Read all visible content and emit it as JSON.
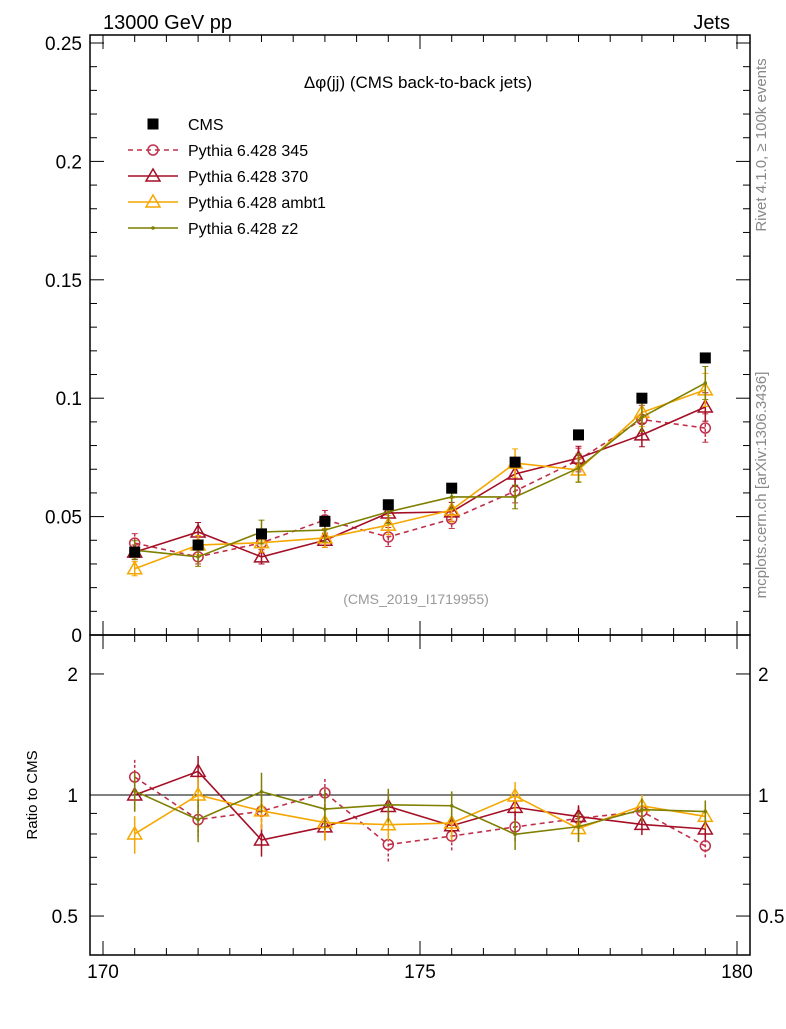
{
  "header": {
    "left": "13000 GeV pp",
    "right": "Jets"
  },
  "side": {
    "rivet": "Rivet 4.1.0, ≥ 100k events",
    "mcplots": "mcplots.cern.ch [arXiv:1306.3436]"
  },
  "watermark": "(CMS_2019_I1719955)",
  "chart_data": {
    "type": "line",
    "title": "Δφ(jj) (CMS back-to-back jets)",
    "xlabel": "",
    "ylabel": "",
    "ratio_ylabel": "Ratio to CMS",
    "xlim": [
      170,
      180
    ],
    "ylim": [
      0,
      0.25
    ],
    "ratio_ylim": [
      0.4,
      2.5
    ],
    "ratio_scale": "log",
    "x_ticks": [
      "170",
      "175",
      "180"
    ],
    "y_ticks": [
      "0",
      "0.05",
      "0.1",
      "0.15",
      "0.2",
      "0.25"
    ],
    "ratio_ticks": [
      "0.5",
      "1",
      "2"
    ],
    "legend_position": "top-left",
    "x": [
      170.5,
      171.5,
      172.5,
      173.5,
      174.5,
      175.5,
      176.5,
      177.5,
      178.5,
      179.5
    ],
    "series": [
      {
        "name": "CMS",
        "color": "#000000",
        "marker": "square",
        "dash": false,
        "line": false,
        "values": [
          0.035,
          0.038,
          0.0427,
          0.048,
          0.055,
          0.062,
          0.073,
          0.0845,
          0.1,
          0.117
        ],
        "errors": [
          0.001,
          0.001,
          0.001,
          0.001,
          0.001,
          0.001,
          0.001,
          0.001,
          0.001,
          0.001
        ]
      },
      {
        "name": "Pythia 6.428 345",
        "color": "#c0304a",
        "marker": "circle",
        "dash": true,
        "line": true,
        "values": [
          0.0388,
          0.033,
          0.0389,
          0.0486,
          0.0414,
          0.049,
          0.0608,
          0.0739,
          0.091,
          0.0874
        ],
        "errors": [
          0.004,
          0.003,
          0.004,
          0.004,
          0.004,
          0.004,
          0.005,
          0.005,
          0.006,
          0.006
        ]
      },
      {
        "name": "Pythia 6.428 370",
        "color": "#a50f26",
        "marker": "triangle",
        "dash": false,
        "line": true,
        "values": [
          0.035,
          0.0435,
          0.033,
          0.04,
          0.0515,
          0.052,
          0.068,
          0.0747,
          0.0845,
          0.0963
        ],
        "errors": [
          0.003,
          0.004,
          0.003,
          0.003,
          0.004,
          0.004,
          0.005,
          0.005,
          0.005,
          0.006
        ]
      },
      {
        "name": "Pythia 6.428 ambt1",
        "color": "#f5a700",
        "marker": "triangle",
        "dash": false,
        "line": true,
        "values": [
          0.028,
          0.038,
          0.039,
          0.041,
          0.0464,
          0.0528,
          0.0726,
          0.0697,
          0.094,
          0.1035
        ],
        "errors": [
          0.003,
          0.004,
          0.004,
          0.004,
          0.004,
          0.005,
          0.006,
          0.005,
          0.006,
          0.007
        ]
      },
      {
        "name": "Pythia 6.428 z2",
        "color": "#7f7f00",
        "marker": "dot",
        "dash": false,
        "line": true,
        "values": [
          0.0358,
          0.033,
          0.0435,
          0.0443,
          0.052,
          0.0583,
          0.0583,
          0.0705,
          0.092,
          0.1064
        ],
        "errors": [
          0.004,
          0.004,
          0.005,
          0.005,
          0.005,
          0.005,
          0.005,
          0.006,
          0.006,
          0.007
        ]
      }
    ]
  }
}
